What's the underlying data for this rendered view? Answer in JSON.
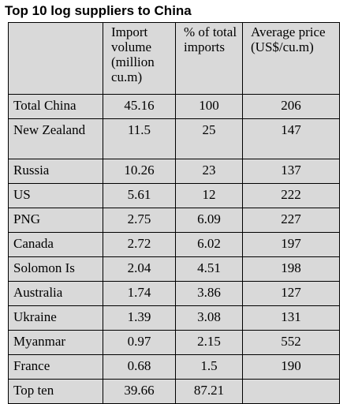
{
  "title": "Top 10 log suppliers to China",
  "table": {
    "header": [
      "Import volume (million cu.m)",
      "% of total imports",
      "Average price (US$/cu.m)"
    ],
    "rows": [
      [
        "Total China",
        45.16,
        100,
        206
      ],
      [
        "New Zealand",
        11.5,
        25,
        147
      ],
      [
        "Russia",
        10.26,
        23,
        137
      ],
      [
        "US",
        5.61,
        12,
        222
      ],
      [
        "PNG",
        2.75,
        6.09,
        227
      ],
      [
        "Canada",
        2.72,
        6.02,
        197
      ],
      [
        "Solomon Is",
        2.04,
        4.51,
        198
      ],
      [
        "Australia",
        1.74,
        3.86,
        127
      ],
      [
        "Ukraine",
        1.39,
        3.08,
        131
      ],
      [
        "Myanmar",
        0.97,
        2.15,
        552
      ],
      [
        "France",
        0.68,
        1.5,
        190
      ],
      [
        "Top ten",
        39.66,
        87.21
      ]
    ]
  }
}
